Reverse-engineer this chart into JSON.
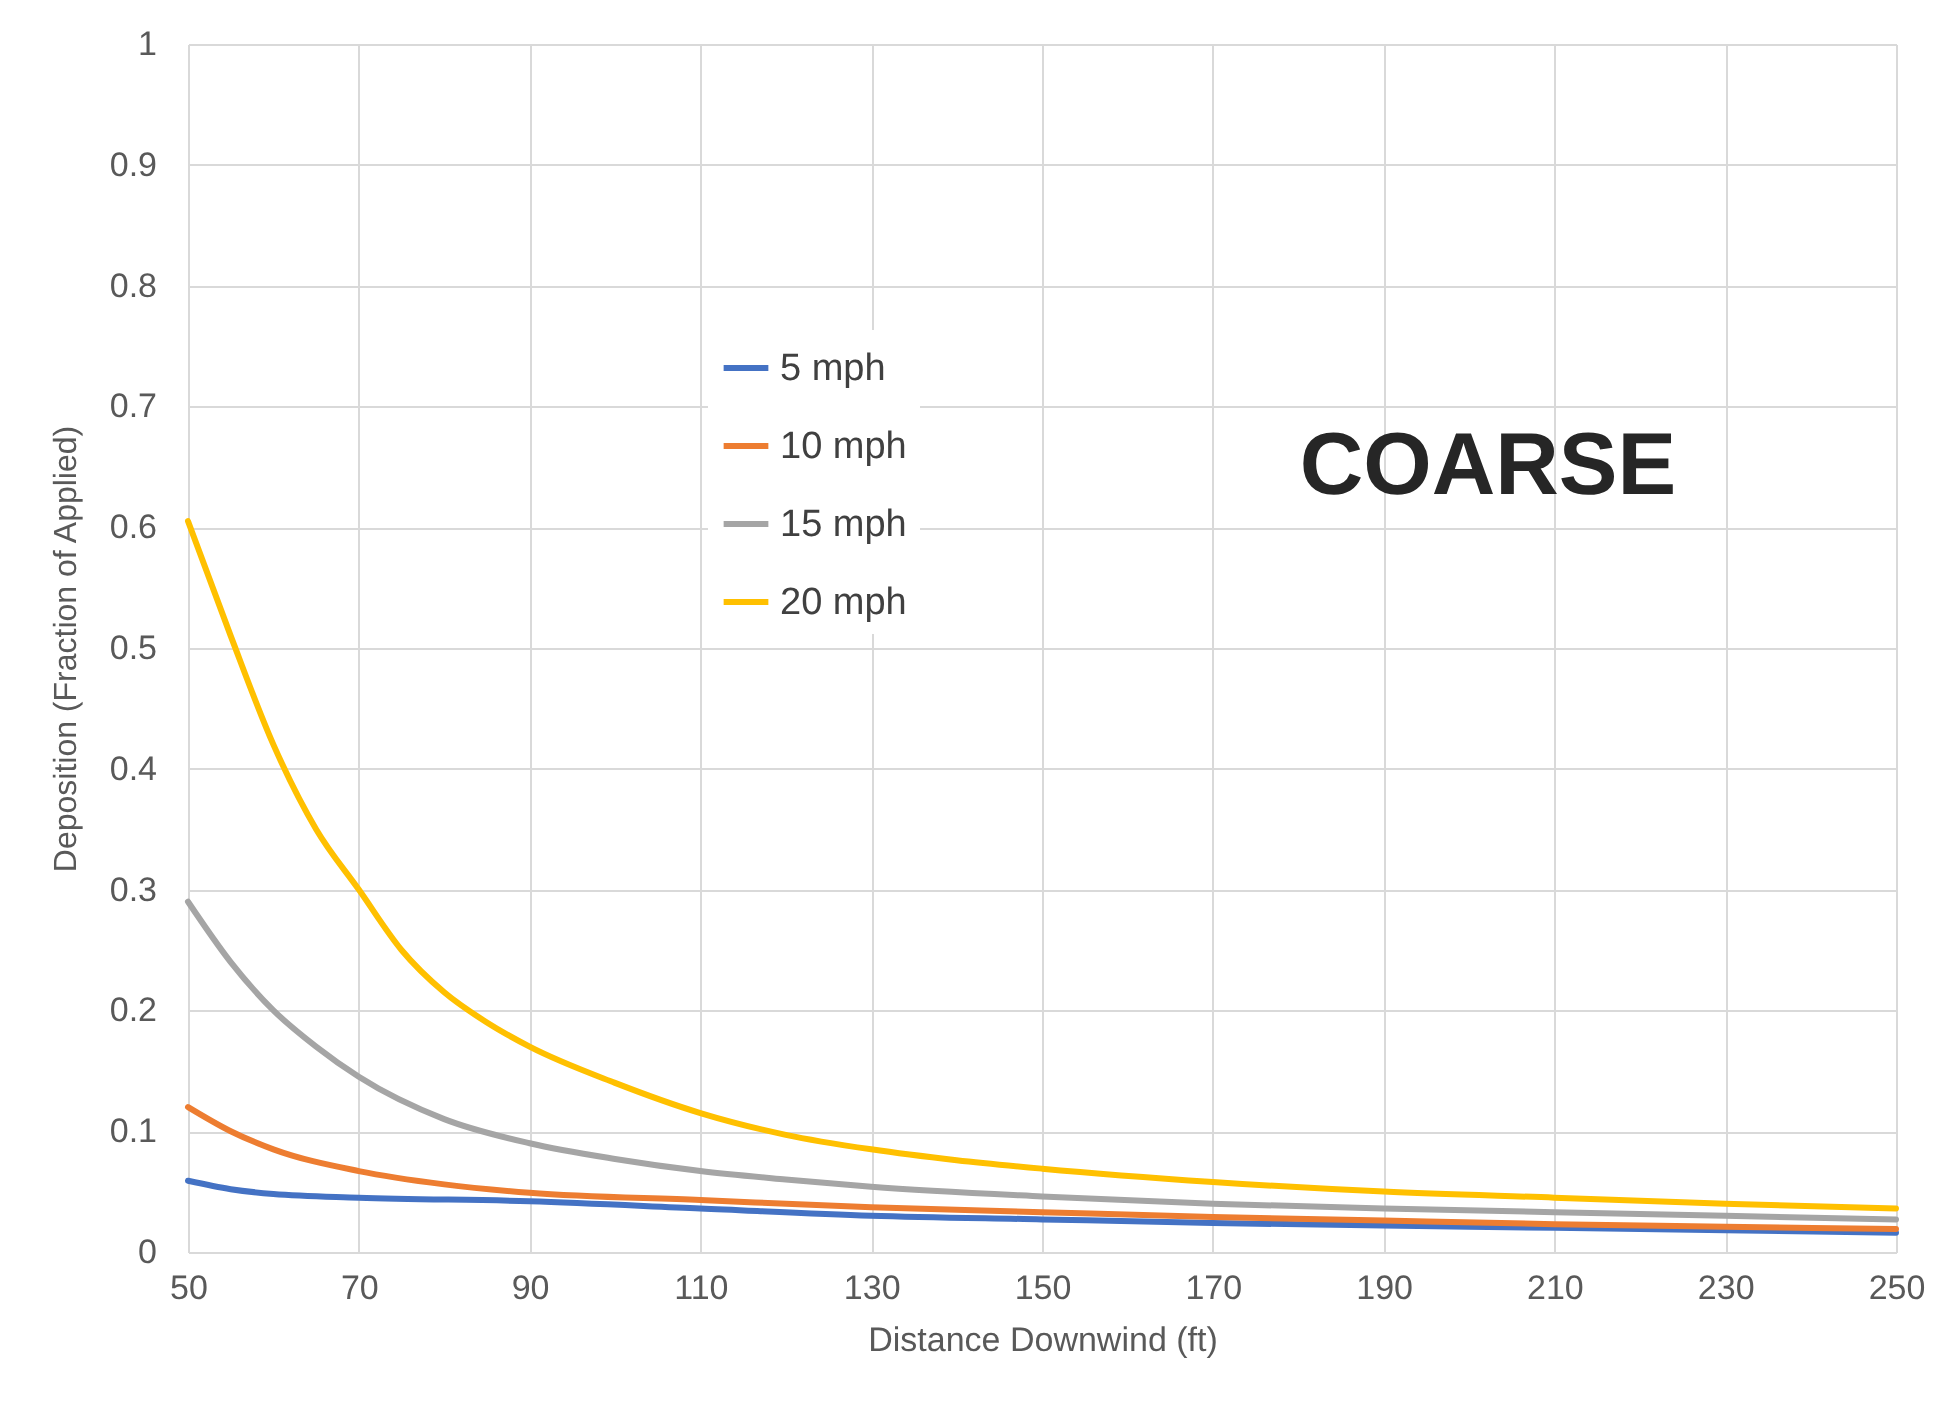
{
  "chart_data": {
    "type": "line",
    "xlabel": "Distance Downwind (ft)",
    "ylabel": "Deposition (Fraction of Applied)",
    "annotations": [
      "COARSE"
    ],
    "xlim": [
      50,
      250
    ],
    "xticks": [
      50,
      70,
      90,
      110,
      130,
      150,
      170,
      190,
      210,
      230,
      250
    ],
    "ylim": [
      0,
      1
    ],
    "yticks": [
      0,
      0.1,
      0.2,
      0.3,
      0.4,
      0.5,
      0.6,
      0.7,
      0.8,
      0.9,
      1
    ],
    "grid": true,
    "legend": "top",
    "marker": "none",
    "line_style": "solid",
    "series": [
      {
        "name": "5 mph",
        "color": "#4472c4",
        "x": [
          50,
          55,
          60,
          70,
          90,
          110,
          130,
          150,
          170,
          190,
          210,
          230,
          250
        ],
        "values": [
          0.059,
          0.052,
          0.048,
          0.045,
          0.042,
          0.036,
          0.03,
          0.027,
          0.024,
          0.022,
          0.02,
          0.018,
          0.016
        ]
      },
      {
        "name": "10 mph",
        "color": "#ed7d31",
        "x": [
          50,
          55,
          60,
          70,
          80,
          90,
          110,
          130,
          150,
          170,
          190,
          210,
          230,
          250
        ],
        "values": [
          0.12,
          0.1,
          0.085,
          0.067,
          0.056,
          0.049,
          0.043,
          0.037,
          0.033,
          0.029,
          0.026,
          0.023,
          0.021,
          0.019
        ]
      },
      {
        "name": "15 mph",
        "color": "#a5a5a5",
        "x": [
          50,
          55,
          60,
          65,
          70,
          80,
          90,
          100,
          110,
          120,
          130,
          150,
          170,
          190,
          210,
          230,
          250
        ],
        "values": [
          0.29,
          0.24,
          0.2,
          0.17,
          0.145,
          0.11,
          0.09,
          0.077,
          0.067,
          0.06,
          0.054,
          0.046,
          0.04,
          0.036,
          0.033,
          0.03,
          0.027
        ]
      },
      {
        "name": "20 mph",
        "color": "#ffc000",
        "x": [
          50,
          55,
          60,
          65,
          70,
          75,
          80,
          85,
          90,
          100,
          110,
          120,
          130,
          140,
          150,
          170,
          190,
          210,
          230,
          250
        ],
        "values": [
          0.605,
          0.51,
          0.42,
          0.35,
          0.3,
          0.25,
          0.215,
          0.19,
          0.17,
          0.14,
          0.115,
          0.097,
          0.085,
          0.076,
          0.069,
          0.058,
          0.05,
          0.045,
          0.04,
          0.036
        ]
      }
    ]
  }
}
